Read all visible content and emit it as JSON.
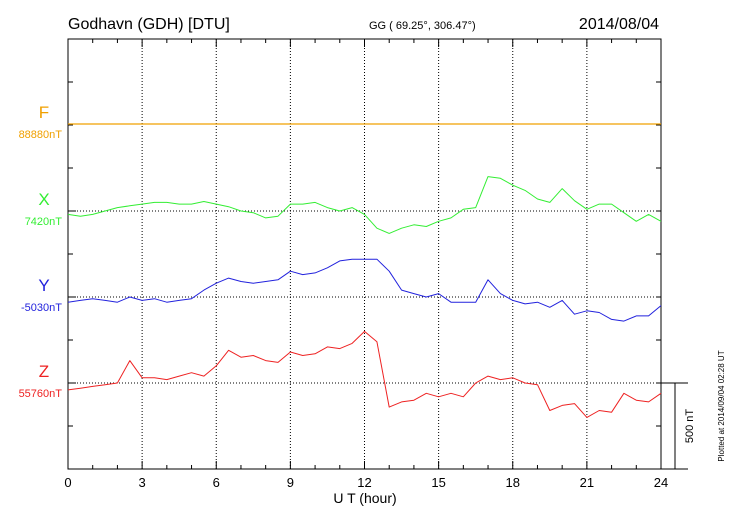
{
  "header": {
    "station": "Godhavn (GDH)  [DTU]",
    "coords": "GG ( 69.25°, 306.47°)",
    "date": "2014/08/04"
  },
  "side_note": "Plotted at 2014/09/04 02:28 UT",
  "scale_label": "500 nT",
  "chart_data": {
    "type": "line",
    "xlabel": "U T (hour)",
    "xlim": [
      0,
      24
    ],
    "x_ticks": [
      "0",
      "3",
      "6",
      "9",
      "12",
      "15",
      "18",
      "21",
      "24"
    ],
    "scale_bar_nT": 500,
    "series": [
      {
        "name": "F",
        "baseline_label": "88880nT",
        "color": "#f0a000",
        "baseline_nT": 88880,
        "x": [
          0,
          24
        ],
        "y": [
          0,
          0
        ]
      },
      {
        "name": "X",
        "baseline_label": "7420nT",
        "color": "#33ee33",
        "baseline_nT": 7420,
        "x": [
          0,
          0.5,
          1,
          1.5,
          2,
          2.5,
          3,
          3.5,
          4,
          4.5,
          5,
          5.5,
          6,
          6.5,
          7,
          7.5,
          8,
          8.5,
          9,
          9.5,
          10,
          10.5,
          11,
          11.5,
          12,
          12.5,
          13,
          13.5,
          14,
          14.5,
          15,
          15.5,
          16,
          16.5,
          17,
          17.5,
          18,
          18.5,
          19,
          19.5,
          20,
          20.5,
          21,
          21.5,
          22,
          22.5,
          23,
          23.5,
          24
        ],
        "y": [
          -20,
          -30,
          -20,
          0,
          20,
          30,
          40,
          50,
          50,
          40,
          40,
          55,
          40,
          25,
          0,
          -10,
          -40,
          -30,
          40,
          40,
          50,
          20,
          0,
          20,
          -20,
          -100,
          -130,
          -100,
          -80,
          -90,
          -60,
          -40,
          10,
          20,
          200,
          190,
          150,
          120,
          70,
          50,
          130,
          60,
          10,
          40,
          40,
          -10,
          -60,
          -20,
          -60
        ]
      },
      {
        "name": "Y",
        "baseline_label": "-5030nT",
        "color": "#2222dd",
        "baseline_nT": -5030,
        "x": [
          0,
          0.5,
          1,
          1.5,
          2,
          2.5,
          3,
          3.5,
          4,
          4.5,
          5,
          5.5,
          6,
          6.5,
          7,
          7.5,
          8,
          8.5,
          9,
          9.5,
          10,
          10.5,
          11,
          11.5,
          12,
          12.5,
          13,
          13.5,
          14,
          14.5,
          15,
          15.5,
          16,
          16.5,
          17,
          17.5,
          18,
          18.5,
          19,
          19.5,
          20,
          20.5,
          21,
          21.5,
          22,
          22.5,
          23,
          23.5,
          24
        ],
        "y": [
          -30,
          -20,
          -10,
          -20,
          -30,
          0,
          -20,
          -10,
          -30,
          -20,
          -10,
          40,
          80,
          110,
          90,
          80,
          90,
          100,
          150,
          130,
          140,
          170,
          210,
          220,
          220,
          220,
          150,
          40,
          20,
          0,
          20,
          -30,
          -30,
          -30,
          100,
          20,
          -20,
          -40,
          -30,
          -60,
          -20,
          -100,
          -80,
          -90,
          -130,
          -140,
          -110,
          -110,
          -50
        ]
      },
      {
        "name": "Z",
        "baseline_label": "55760nT",
        "color": "#ee2222",
        "baseline_nT": 55760,
        "x": [
          0,
          0.5,
          1,
          1.5,
          2,
          2.5,
          3,
          3.5,
          4,
          4.5,
          5,
          5.5,
          6,
          6.5,
          7,
          7.5,
          8,
          8.5,
          9,
          9.5,
          10,
          10.5,
          11,
          11.5,
          12,
          12.5,
          13,
          13.5,
          14,
          14.5,
          15,
          15.5,
          16,
          16.5,
          17,
          17.5,
          18,
          18.5,
          19,
          19.5,
          20,
          20.5,
          21,
          21.5,
          22,
          22.5,
          23,
          23.5,
          24
        ],
        "y": [
          -40,
          -30,
          -20,
          -10,
          0,
          130,
          30,
          30,
          20,
          40,
          60,
          40,
          100,
          190,
          150,
          160,
          130,
          120,
          180,
          160,
          170,
          210,
          200,
          230,
          300,
          240,
          -140,
          -110,
          -100,
          -60,
          -80,
          -60,
          -80,
          0,
          40,
          20,
          30,
          0,
          -10,
          -160,
          -130,
          -120,
          -200,
          -160,
          -170,
          -60,
          -100,
          -110,
          -60
        ]
      }
    ]
  }
}
